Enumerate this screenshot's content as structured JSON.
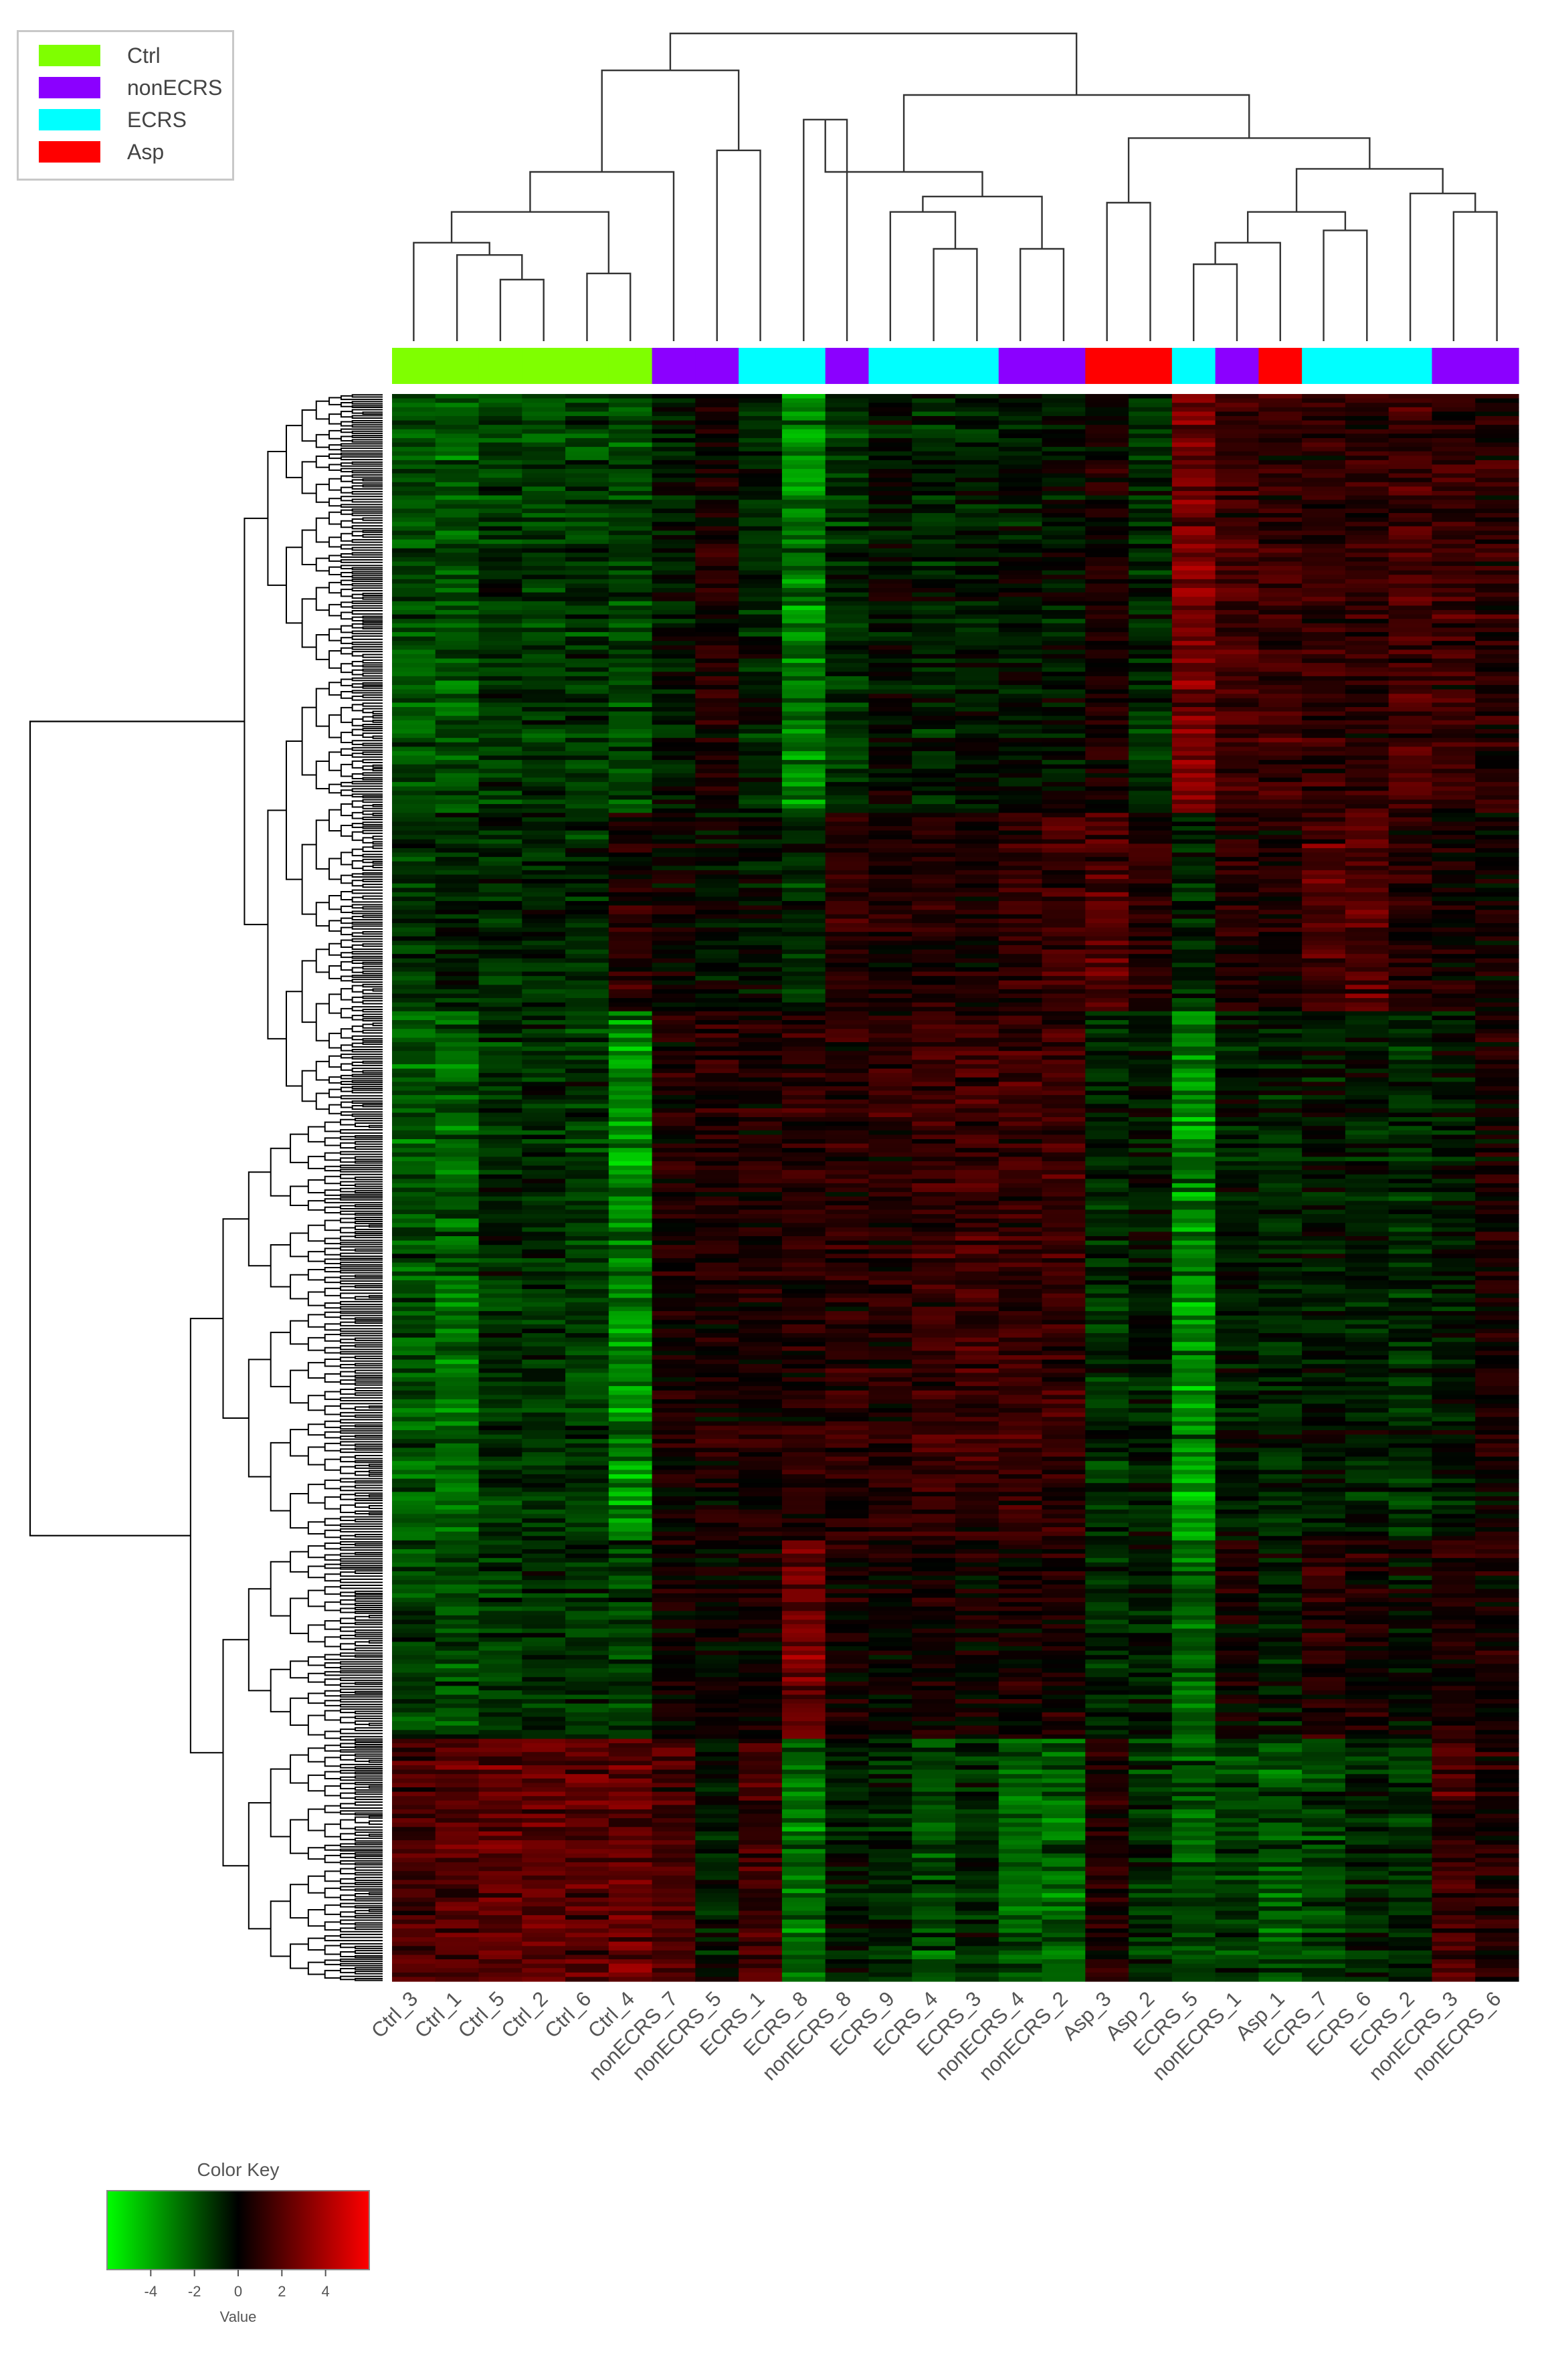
{
  "chart_data": {
    "type": "heatmap",
    "title": "",
    "xlabel": "",
    "ylabel": "",
    "legend": {
      "placement": "top-left",
      "entries": [
        {
          "name": "Ctrl",
          "color": "#7fff00"
        },
        {
          "name": "nonECRS",
          "color": "#8b00ff"
        },
        {
          "name": "ECRS",
          "color": "#00ffff"
        },
        {
          "name": "Asp",
          "color": "#ff0000"
        }
      ]
    },
    "columns": [
      "Ctrl_3",
      "Ctrl_1",
      "Ctrl_5",
      "Ctrl_2",
      "Ctrl_6",
      "Ctrl_4",
      "nonECRS_7",
      "nonECRS_5",
      "ECRS_1",
      "ECRS_8",
      "nonECRS_8",
      "ECRS_9",
      "ECRS_4",
      "ECRS_3",
      "nonECRS_4",
      "nonECRS_2",
      "Asp_3",
      "Asp_2",
      "ECRS_5",
      "nonECRS_1",
      "Asp_1",
      "ECRS_7",
      "ECRS_6",
      "ECRS_2",
      "nonECRS_3",
      "nonECRS_6"
    ],
    "column_groups": [
      "Ctrl",
      "Ctrl",
      "Ctrl",
      "Ctrl",
      "Ctrl",
      "Ctrl",
      "nonECRS",
      "nonECRS",
      "ECRS",
      "ECRS",
      "nonECRS",
      "ECRS",
      "ECRS",
      "ECRS",
      "nonECRS",
      "nonECRS",
      "Asp",
      "Asp",
      "ECRS",
      "nonECRS",
      "Asp",
      "ECRS",
      "ECRS",
      "ECRS",
      "nonECRS",
      "nonECRS"
    ],
    "row_blocks": [
      {
        "rows": 95,
        "profile": [
          -2.0,
          -2.2,
          -1.5,
          -1.6,
          -1.4,
          -1.8,
          -0.5,
          0.6,
          -0.8,
          -3.5,
          -1.2,
          -0.3,
          -0.8,
          -0.7,
          -0.5,
          -0.4,
          0.6,
          -1.2,
          3.0,
          1.6,
          1.4,
          1.2,
          1.1,
          1.6,
          1.4,
          1.0
        ]
      },
      {
        "rows": 45,
        "profile": [
          -1.2,
          -0.8,
          -1.0,
          -0.8,
          -1.0,
          0.8,
          0.2,
          -0.2,
          -0.3,
          -1.0,
          1.2,
          0.8,
          1.0,
          0.5,
          1.2,
          1.4,
          2.2,
          1.0,
          -0.8,
          1.0,
          0.8,
          2.0,
          2.2,
          1.0,
          0.6,
          0.4
        ]
      },
      {
        "rows": 120,
        "profile": [
          -2.2,
          -2.6,
          -1.2,
          -1.0,
          -1.3,
          -3.6,
          0.6,
          0.8,
          0.7,
          0.9,
          1.0,
          1.0,
          1.5,
          1.5,
          1.4,
          1.4,
          -1.0,
          -0.5,
          -3.5,
          -0.6,
          -0.8,
          -0.4,
          -0.6,
          -1.0,
          -0.4,
          0.6
        ]
      },
      {
        "rows": 45,
        "profile": [
          -1.6,
          -1.8,
          -1.2,
          -1.0,
          -1.2,
          -1.6,
          0.4,
          0.2,
          0.3,
          3.0,
          0.5,
          0.2,
          0.6,
          0.4,
          0.5,
          0.6,
          -0.8,
          -0.6,
          -2.6,
          0.4,
          -0.6,
          1.0,
          0.6,
          -0.2,
          0.8,
          0.6
        ]
      },
      {
        "rows": 55,
        "profile": [
          1.8,
          2.0,
          2.4,
          2.4,
          2.2,
          2.5,
          1.8,
          -0.5,
          1.5,
          -2.8,
          -0.5,
          -1.0,
          -2.0,
          -1.0,
          -2.5,
          -2.8,
          0.8,
          -1.2,
          -2.0,
          -1.6,
          -2.2,
          -1.6,
          -0.8,
          -1.2,
          1.6,
          0.8
        ]
      }
    ],
    "color_key": {
      "title": "Color Key",
      "xlabel": "Value",
      "range": [
        -6,
        6
      ],
      "ticks": [
        -4,
        -2,
        0,
        2,
        4
      ],
      "low_color": "#00ff00",
      "mid_color": "#000000",
      "high_color": "#ff0000"
    },
    "column_dendrogram": true,
    "row_dendrogram": true
  }
}
